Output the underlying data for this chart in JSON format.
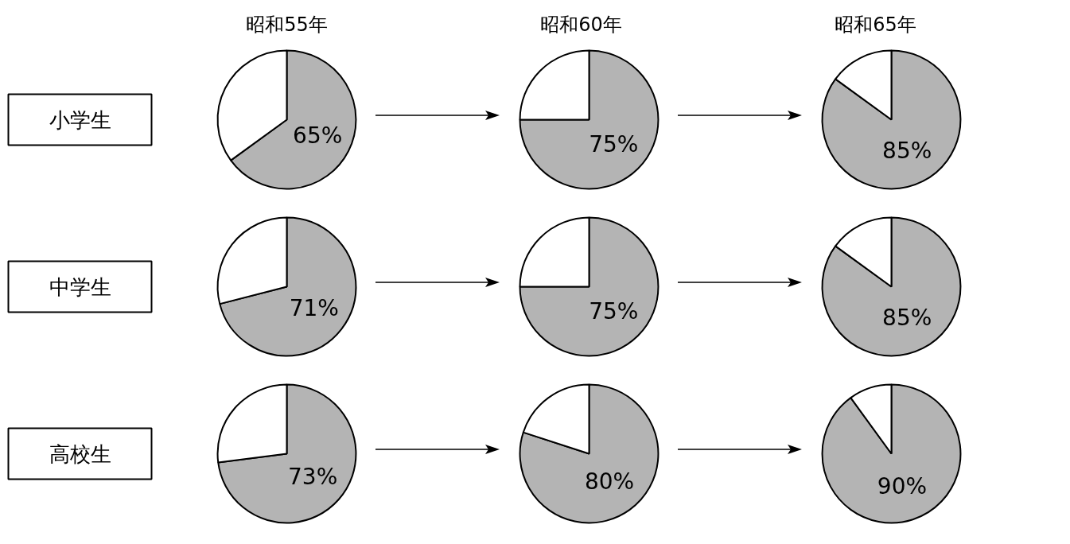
{
  "chart_data": [
    {
      "type": "pie",
      "title": "昭和55年",
      "ylabel": "小学生",
      "categories": [
        null,
        null
      ],
      "values": [
        65,
        35
      ],
      "colors": [
        "#b4b4b4",
        "#ffffff"
      ],
      "value_labels": [
        "65%",
        null
      ]
    },
    {
      "type": "pie",
      "title": "昭和60年",
      "categories": [
        null,
        null
      ],
      "values": [
        75,
        25
      ],
      "colors": [
        "#b4b4b4",
        "#ffffff"
      ],
      "value_labels": [
        "75%",
        null
      ]
    },
    {
      "type": "pie",
      "title": "昭和65年",
      "categories": [
        null,
        null
      ],
      "values": [
        85,
        15
      ],
      "colors": [
        "#b4b4b4",
        "#ffffff"
      ],
      "value_labels": [
        "85%",
        null
      ]
    },
    {
      "type": "pie",
      "ylabel": "中学生",
      "categories": [
        null,
        null
      ],
      "values": [
        71,
        29
      ],
      "colors": [
        "#b4b4b4",
        "#ffffff"
      ],
      "value_labels": [
        "71%",
        null
      ]
    },
    {
      "type": "pie",
      "categories": [
        null,
        null
      ],
      "values": [
        75,
        25
      ],
      "colors": [
        "#b4b4b4",
        "#ffffff"
      ],
      "value_labels": [
        "75%",
        null
      ]
    },
    {
      "type": "pie",
      "categories": [
        null,
        null
      ],
      "values": [
        85,
        15
      ],
      "colors": [
        "#b4b4b4",
        "#ffffff"
      ],
      "value_labels": [
        "85%",
        null
      ]
    },
    {
      "type": "pie",
      "ylabel": "高校生",
      "categories": [
        null,
        null
      ],
      "values": [
        73,
        27
      ],
      "colors": [
        "#b4b4b4",
        "#ffffff"
      ],
      "value_labels": [
        "73%",
        null
      ]
    },
    {
      "type": "pie",
      "categories": [
        null,
        null
      ],
      "values": [
        80,
        20
      ],
      "colors": [
        "#b4b4b4",
        "#ffffff"
      ],
      "value_labels": [
        "80%",
        null
      ]
    },
    {
      "type": "pie",
      "categories": [
        null,
        null
      ],
      "values": [
        90,
        10
      ],
      "colors": [
        "#b4b4b4",
        "#ffffff"
      ],
      "value_labels": [
        "90%",
        null
      ]
    }
  ]
}
